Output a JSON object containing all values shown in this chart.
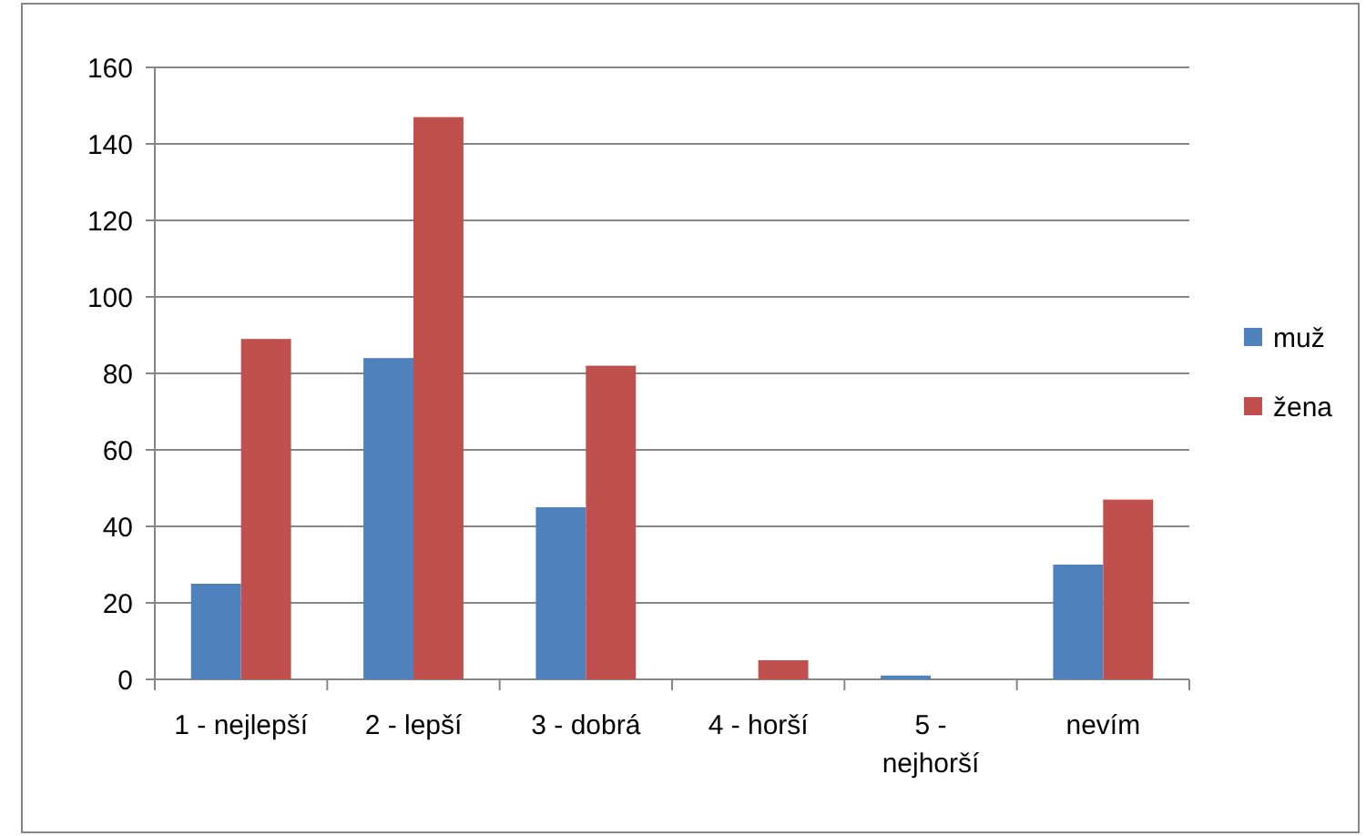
{
  "chart_data": {
    "type": "bar",
    "categories": [
      "1 - nejlepší",
      "2 - lepší",
      "3 - dobrá",
      "4 - horší",
      "5 -\nnejhorší",
      "nevím"
    ],
    "series": [
      {
        "name": "muž",
        "color": "#4f81bd",
        "values": [
          25,
          84,
          45,
          0,
          1,
          30
        ]
      },
      {
        "name": "žena",
        "color": "#c0504d",
        "values": [
          89,
          147,
          82,
          5,
          0,
          47
        ]
      }
    ],
    "ylim": [
      0,
      160
    ],
    "yticks": [
      0,
      20,
      40,
      60,
      80,
      100,
      120,
      140,
      160
    ],
    "grid": "y",
    "legend": "right"
  }
}
